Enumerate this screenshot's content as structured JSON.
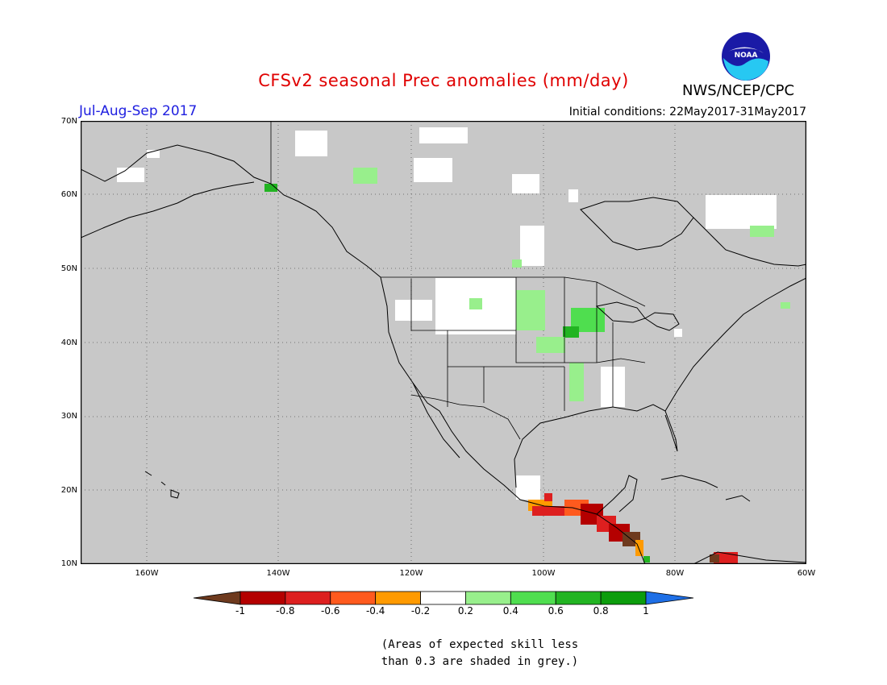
{
  "header": {
    "title": "CFSv2 seasonal Prec anomalies (mm/day)",
    "period": "Jul-Aug-Sep 2017",
    "org": "NWS/NCEP/CPC",
    "initial_conditions": "Initial conditions: 22May2017-31May2017",
    "logo_text": "NOAA"
  },
  "map": {
    "lat_labels": [
      "70N",
      "60N",
      "50N",
      "40N",
      "30N",
      "20N",
      "10N"
    ],
    "lon_labels": [
      "160W",
      "140W",
      "120W",
      "100W",
      "80W",
      "60W"
    ],
    "land_color": "#c8c8c8",
    "border_color": "#000000"
  },
  "colorbar": {
    "labels": [
      "-1",
      "-0.8",
      "-0.6",
      "-0.4",
      "-0.2",
      "0.2",
      "0.4",
      "0.6",
      "0.8",
      "1"
    ],
    "colors": [
      "#6e3a1e",
      "#b40000",
      "#dd1f1f",
      "#ff5a1e",
      "#ff9a00",
      "#ffffff",
      "#98ef8c",
      "#4fde4f",
      "#22b422",
      "#0c9d0c",
      "#1e6fe6"
    ]
  },
  "note": {
    "line1": "(Areas of expected skill less",
    "line2": "than 0.3 are shaded in grey.)"
  }
}
